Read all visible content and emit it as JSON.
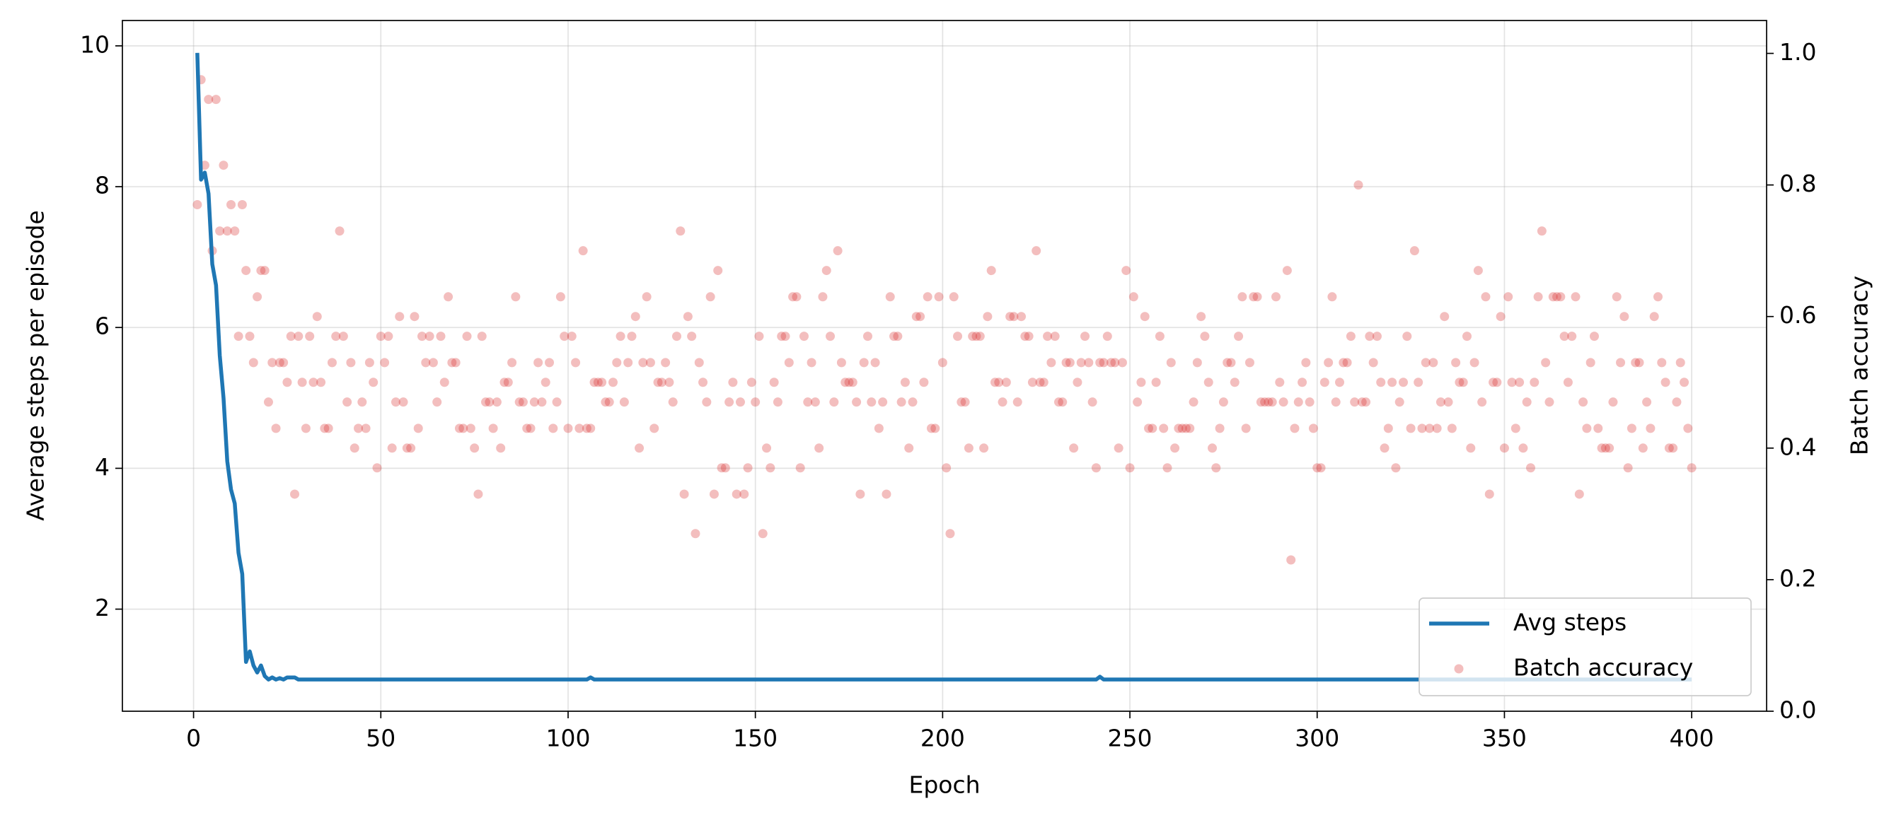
{
  "chart_data": {
    "type": "line",
    "x_label": "Epoch",
    "y_label": "Average steps per episode",
    "y2_label": "Batch accuracy",
    "xlim": [
      -19,
      420
    ],
    "ylim": [
      0.55,
      10.36
    ],
    "y2lim": [
      0,
      1.05
    ],
    "xticks": [
      0,
      50,
      100,
      150,
      200,
      250,
      300,
      350,
      400
    ],
    "yticks": [
      2,
      4,
      6,
      8,
      10
    ],
    "y2ticks": [
      {
        "value": 0,
        "label": "0.0"
      },
      0.2,
      0.4,
      0.6,
      0.8,
      {
        "value": 1,
        "label": "1.0"
      }
    ],
    "grid": true,
    "legend": "lower right",
    "x": [
      1,
      2,
      3,
      4,
      5,
      6,
      7,
      8,
      9,
      10,
      11,
      12,
      13,
      14,
      15,
      16,
      17,
      18,
      19,
      20,
      21,
      22,
      23,
      24,
      25,
      26,
      27,
      28,
      29,
      30,
      31,
      32,
      33,
      34,
      35,
      36,
      37,
      38,
      39,
      40,
      41,
      42,
      43,
      44,
      45,
      46,
      47,
      48,
      49,
      50,
      51,
      52,
      53,
      54,
      55,
      56,
      57,
      58,
      59,
      60,
      61,
      62,
      63,
      64,
      65,
      66,
      67,
      68,
      69,
      70,
      71,
      72,
      73,
      74,
      75,
      76,
      77,
      78,
      79,
      80,
      81,
      82,
      83,
      84,
      85,
      86,
      87,
      88,
      89,
      90,
      91,
      92,
      93,
      94,
      95,
      96,
      97,
      98,
      99,
      100,
      101,
      102,
      103,
      104,
      105,
      106,
      107,
      108,
      109,
      110,
      111,
      112,
      113,
      114,
      115,
      116,
      117,
      118,
      119,
      120,
      121,
      122,
      123,
      124,
      125,
      126,
      127,
      128,
      129,
      130,
      131,
      132,
      133,
      134,
      135,
      136,
      137,
      138,
      139,
      140,
      141,
      142,
      143,
      144,
      145,
      146,
      147,
      148,
      149,
      150,
      151,
      152,
      153,
      154,
      155,
      156,
      157,
      158,
      159,
      160,
      161,
      162,
      163,
      164,
      165,
      166,
      167,
      168,
      169,
      170,
      171,
      172,
      173,
      174,
      175,
      176,
      177,
      178,
      179,
      180,
      181,
      182,
      183,
      184,
      185,
      186,
      187,
      188,
      189,
      190,
      191,
      192,
      193,
      194,
      195,
      196,
      197,
      198,
      199,
      200,
      201,
      202,
      203,
      204,
      205,
      206,
      207,
      208,
      209,
      210,
      211,
      212,
      213,
      214,
      215,
      216,
      217,
      218,
      219,
      220,
      221,
      222,
      223,
      224,
      225,
      226,
      227,
      228,
      229,
      230,
      231,
      232,
      233,
      234,
      235,
      236,
      237,
      238,
      239,
      240,
      241,
      242,
      243,
      244,
      245,
      246,
      247,
      248,
      249,
      250,
      251,
      252,
      253,
      254,
      255,
      256,
      257,
      258,
      259,
      260,
      261,
      262,
      263,
      264,
      265,
      266,
      267,
      268,
      269,
      270,
      271,
      272,
      273,
      274,
      275,
      276,
      277,
      278,
      279,
      280,
      281,
      282,
      283,
      284,
      285,
      286,
      287,
      288,
      289,
      290,
      291,
      292,
      293,
      294,
      295,
      296,
      297,
      298,
      299,
      300,
      301,
      302,
      303,
      304,
      305,
      306,
      307,
      308,
      309,
      310,
      311,
      312,
      313,
      314,
      315,
      316,
      317,
      318,
      319,
      320,
      321,
      322,
      323,
      324,
      325,
      326,
      327,
      328,
      329,
      330,
      331,
      332,
      333,
      334,
      335,
      336,
      337,
      338,
      339,
      340,
      341,
      342,
      343,
      344,
      345,
      346,
      347,
      348,
      349,
      350,
      351,
      352,
      353,
      354,
      355,
      356,
      357,
      358,
      359,
      360,
      361,
      362,
      363,
      364,
      365,
      366,
      367,
      368,
      369,
      370,
      371,
      372,
      373,
      374,
      375,
      376,
      377,
      378,
      379,
      380,
      381,
      382,
      383,
      384,
      385,
      386,
      387,
      388,
      389,
      390,
      391,
      392,
      393,
      394,
      395,
      396,
      397,
      398,
      399,
      400
    ],
    "series": [
      {
        "name": "Avg steps",
        "type": "line",
        "color": "#1f77b4",
        "values": [
          9.9,
          8.1,
          8.2,
          7.9,
          6.9,
          6.6,
          5.6,
          5.0,
          4.1,
          3.7,
          3.5,
          2.8,
          2.5,
          1.25,
          1.4,
          1.2,
          1.1,
          1.2,
          1.05,
          1.0,
          1.03,
          1.0,
          1.02,
          1.0,
          1.03,
          1.03,
          1.03,
          1.0,
          1.0,
          1.0,
          1,
          1,
          1,
          1,
          1,
          1,
          1,
          1,
          1,
          1,
          1,
          1,
          1,
          1,
          1,
          1,
          1,
          1,
          1,
          1,
          1,
          1,
          1,
          1,
          1,
          1,
          1,
          1,
          1,
          1,
          1,
          1,
          1,
          1,
          1,
          1,
          1,
          1,
          1,
          1,
          1,
          1,
          1,
          1,
          1,
          1,
          1,
          1,
          1,
          1,
          1,
          1,
          1,
          1,
          1,
          1,
          1,
          1,
          1,
          1,
          1,
          1,
          1,
          1,
          1,
          1,
          1,
          1,
          1,
          1,
          1,
          1,
          1,
          1,
          1,
          1.03,
          1,
          1,
          1,
          1,
          1,
          1,
          1,
          1,
          1,
          1,
          1,
          1,
          1,
          1,
          1,
          1,
          1,
          1,
          1,
          1,
          1,
          1,
          1,
          1,
          1,
          1,
          1,
          1,
          1,
          1,
          1,
          1,
          1,
          1,
          1,
          1,
          1,
          1,
          1,
          1,
          1,
          1,
          1,
          1,
          1,
          1,
          1,
          1,
          1,
          1,
          1,
          1,
          1,
          1,
          1,
          1,
          1,
          1,
          1,
          1,
          1,
          1,
          1,
          1,
          1,
          1,
          1,
          1,
          1,
          1,
          1,
          1,
          1,
          1,
          1,
          1,
          1,
          1,
          1,
          1,
          1,
          1,
          1,
          1,
          1,
          1,
          1,
          1,
          1,
          1,
          1,
          1,
          1,
          1,
          1,
          1,
          1,
          1,
          1,
          1,
          1,
          1,
          1,
          1,
          1,
          1,
          1,
          1,
          1,
          1,
          1,
          1,
          1,
          1,
          1,
          1,
          1,
          1,
          1,
          1,
          1,
          1,
          1,
          1,
          1,
          1,
          1,
          1,
          1,
          1,
          1,
          1,
          1,
          1,
          1,
          1.04,
          1,
          1,
          1,
          1,
          1,
          1,
          1,
          1,
          1,
          1,
          1,
          1,
          1,
          1,
          1,
          1,
          1,
          1,
          1,
          1,
          1,
          1,
          1,
          1,
          1,
          1,
          1,
          1,
          1,
          1,
          1,
          1,
          1,
          1,
          1,
          1,
          1,
          1,
          1,
          1,
          1,
          1,
          1,
          1,
          1,
          1,
          1,
          1,
          1,
          1,
          1,
          1,
          1,
          1,
          1,
          1,
          1,
          1,
          1,
          1,
          1,
          1,
          1,
          1,
          1,
          1,
          1,
          1,
          1,
          1,
          1,
          1,
          1,
          1,
          1,
          1,
          1,
          1,
          1,
          1,
          1,
          1,
          1,
          1,
          1,
          1,
          1,
          1,
          1,
          1,
          1,
          1,
          1,
          1,
          1,
          1,
          1,
          1,
          1,
          1,
          1,
          1,
          1,
          1,
          1,
          1,
          1,
          1,
          1,
          1,
          1,
          1,
          1,
          1,
          1,
          1,
          1,
          1,
          1,
          1,
          1,
          1,
          1,
          1,
          1,
          1,
          1,
          1,
          1,
          1,
          1,
          1,
          1,
          1,
          1,
          1,
          1,
          1,
          1,
          1,
          1,
          1,
          1,
          1,
          1,
          1,
          1,
          1,
          1,
          1,
          1,
          1,
          1,
          1,
          1,
          1,
          1,
          1
        ]
      },
      {
        "name": "Batch accuracy",
        "type": "scatter",
        "color": "#d62728",
        "axis": "y2",
        "values": [
          0.77,
          0.96,
          0.83,
          0.93,
          0.7,
          0.93,
          0.73,
          0.83,
          0.73,
          0.77,
          0.73,
          0.57,
          0.77,
          0.67,
          0.57,
          0.53,
          0.63,
          0.67,
          0.67,
          0.47,
          0.53,
          0.43,
          0.53,
          0.53,
          0.5,
          0.57,
          0.33,
          0.57,
          0.5,
          0.43,
          0.57,
          0.5,
          0.6,
          0.5,
          0.43,
          0.43,
          0.53,
          0.57,
          0.73,
          0.57,
          0.47,
          0.53,
          0.4,
          0.43,
          0.47,
          0.43,
          0.53,
          0.5,
          0.37,
          0.57,
          0.53,
          0.57,
          0.4,
          0.47,
          0.6,
          0.47,
          0.4,
          0.4,
          0.6,
          0.43,
          0.57,
          0.53,
          0.57,
          0.53,
          0.47,
          0.57,
          0.5,
          0.63,
          0.53,
          0.53,
          0.43,
          0.43,
          0.57,
          0.43,
          0.4,
          0.33,
          0.57,
          0.47,
          0.47,
          0.43,
          0.47,
          0.4,
          0.5,
          0.5,
          0.53,
          0.63,
          0.47,
          0.47,
          0.43,
          0.43,
          0.47,
          0.53,
          0.47,
          0.5,
          0.53,
          0.43,
          0.47,
          0.63,
          0.57,
          0.43,
          0.57,
          0.53,
          0.43,
          0.7,
          0.43,
          0.43,
          0.5,
          0.5,
          0.5,
          0.47,
          0.47,
          0.5,
          0.53,
          0.57,
          0.47,
          0.53,
          0.57,
          0.6,
          0.4,
          0.53,
          0.63,
          0.53,
          0.43,
          0.5,
          0.5,
          0.53,
          0.5,
          0.47,
          0.57,
          0.73,
          0.33,
          0.6,
          0.57,
          0.27,
          0.53,
          0.5,
          0.47,
          0.63,
          0.33,
          0.67,
          0.37,
          0.37,
          0.47,
          0.5,
          0.33,
          0.47,
          0.33,
          0.37,
          0.5,
          0.47,
          0.57,
          0.27,
          0.4,
          0.37,
          0.5,
          0.47,
          0.57,
          0.57,
          0.53,
          0.63,
          0.63,
          0.37,
          0.57,
          0.47,
          0.53,
          0.47,
          0.4,
          0.63,
          0.67,
          0.57,
          0.47,
          0.7,
          0.53,
          0.5,
          0.5,
          0.5,
          0.47,
          0.33,
          0.53,
          0.57,
          0.47,
          0.53,
          0.43,
          0.47,
          0.33,
          0.63,
          0.57,
          0.57,
          0.47,
          0.5,
          0.4,
          0.47,
          0.6,
          0.6,
          0.5,
          0.63,
          0.43,
          0.43,
          0.63,
          0.53,
          0.37,
          0.27,
          0.63,
          0.57,
          0.47,
          0.47,
          0.4,
          0.57,
          0.57,
          0.57,
          0.4,
          0.6,
          0.67,
          0.5,
          0.5,
          0.47,
          0.5,
          0.6,
          0.6,
          0.47,
          0.6,
          0.57,
          0.57,
          0.5,
          0.7,
          0.5,
          0.5,
          0.57,
          0.53,
          0.57,
          0.47,
          0.47,
          0.53,
          0.53,
          0.4,
          0.5,
          0.53,
          0.57,
          0.53,
          0.47,
          0.37,
          0.53,
          0.53,
          0.57,
          0.53,
          0.53,
          0.4,
          0.53,
          0.67,
          0.37,
          0.63,
          0.47,
          0.5,
          0.6,
          0.43,
          0.43,
          0.5,
          0.57,
          0.43,
          0.37,
          0.53,
          0.4,
          0.43,
          0.43,
          0.43,
          0.43,
          0.47,
          0.53,
          0.6,
          0.57,
          0.5,
          0.4,
          0.37,
          0.43,
          0.47,
          0.53,
          0.53,
          0.5,
          0.57,
          0.63,
          0.43,
          0.53,
          0.63,
          0.63,
          0.47,
          0.47,
          0.47,
          0.47,
          0.63,
          0.5,
          0.47,
          0.67,
          0.23,
          0.43,
          0.47,
          0.5,
          0.53,
          0.47,
          0.43,
          0.37,
          0.37,
          0.5,
          0.53,
          0.63,
          0.47,
          0.5,
          0.53,
          0.53,
          0.57,
          0.47,
          0.8,
          0.47,
          0.47,
          0.57,
          0.53,
          0.57,
          0.5,
          0.4,
          0.43,
          0.5,
          0.37,
          0.47,
          0.5,
          0.57,
          0.43,
          0.7,
          0.5,
          0.43,
          0.53,
          0.43,
          0.53,
          0.43,
          0.47,
          0.6,
          0.47,
          0.43,
          0.53,
          0.5,
          0.5,
          0.57,
          0.4,
          0.53,
          0.67,
          0.47,
          0.63,
          0.33,
          0.5,
          0.5,
          0.6,
          0.4,
          0.63,
          0.5,
          0.43,
          0.5,
          0.4,
          0.47,
          0.37,
          0.5,
          0.63,
          0.73,
          0.53,
          0.47,
          0.63,
          0.63,
          0.63,
          0.57,
          0.5,
          0.57,
          0.63,
          0.33,
          0.47,
          0.43,
          0.53,
          0.57,
          0.43,
          0.4,
          0.4,
          0.4,
          0.47,
          0.63,
          0.53,
          0.6,
          0.37,
          0.43,
          0.53,
          0.53,
          0.4,
          0.47,
          0.43,
          0.6,
          0.63,
          0.53,
          0.5,
          0.4,
          0.4,
          0.47,
          0.53,
          0.5,
          0.43,
          0.37
        ]
      }
    ]
  }
}
